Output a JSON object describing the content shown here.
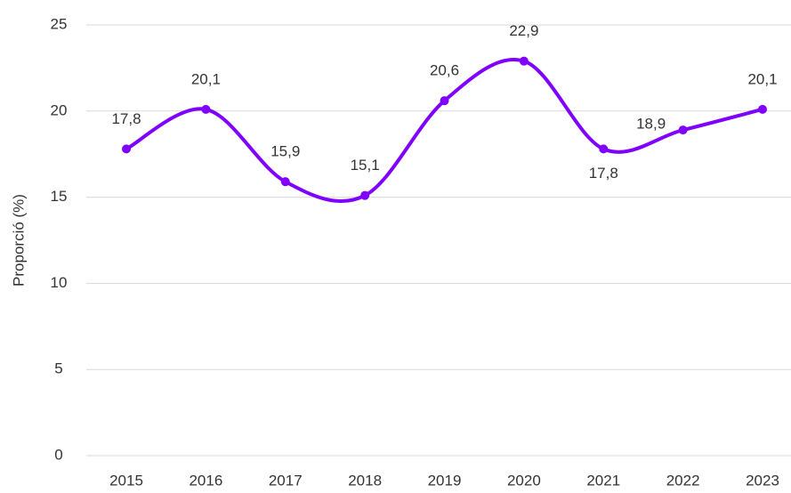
{
  "chart_data": {
    "type": "line",
    "y_label": "Proporció (%)",
    "categories": [
      "2015",
      "2016",
      "2017",
      "2018",
      "2019",
      "2020",
      "2021",
      "2022",
      "2023"
    ],
    "series": [
      {
        "name": "Proporció",
        "color": "#8000ff",
        "values": [
          17.8,
          20.1,
          15.9,
          15.1,
          20.6,
          22.9,
          17.8,
          18.9,
          20.1
        ],
        "value_labels": [
          "17,8",
          "20,1",
          "15,9",
          "15,1",
          "20,6",
          "22,9",
          "17,8",
          "18,9",
          "20,1"
        ]
      }
    ],
    "ylim": [
      0,
      25
    ],
    "yticks": [
      0,
      5,
      10,
      15,
      20,
      25
    ],
    "grid": true,
    "smooth": true
  }
}
